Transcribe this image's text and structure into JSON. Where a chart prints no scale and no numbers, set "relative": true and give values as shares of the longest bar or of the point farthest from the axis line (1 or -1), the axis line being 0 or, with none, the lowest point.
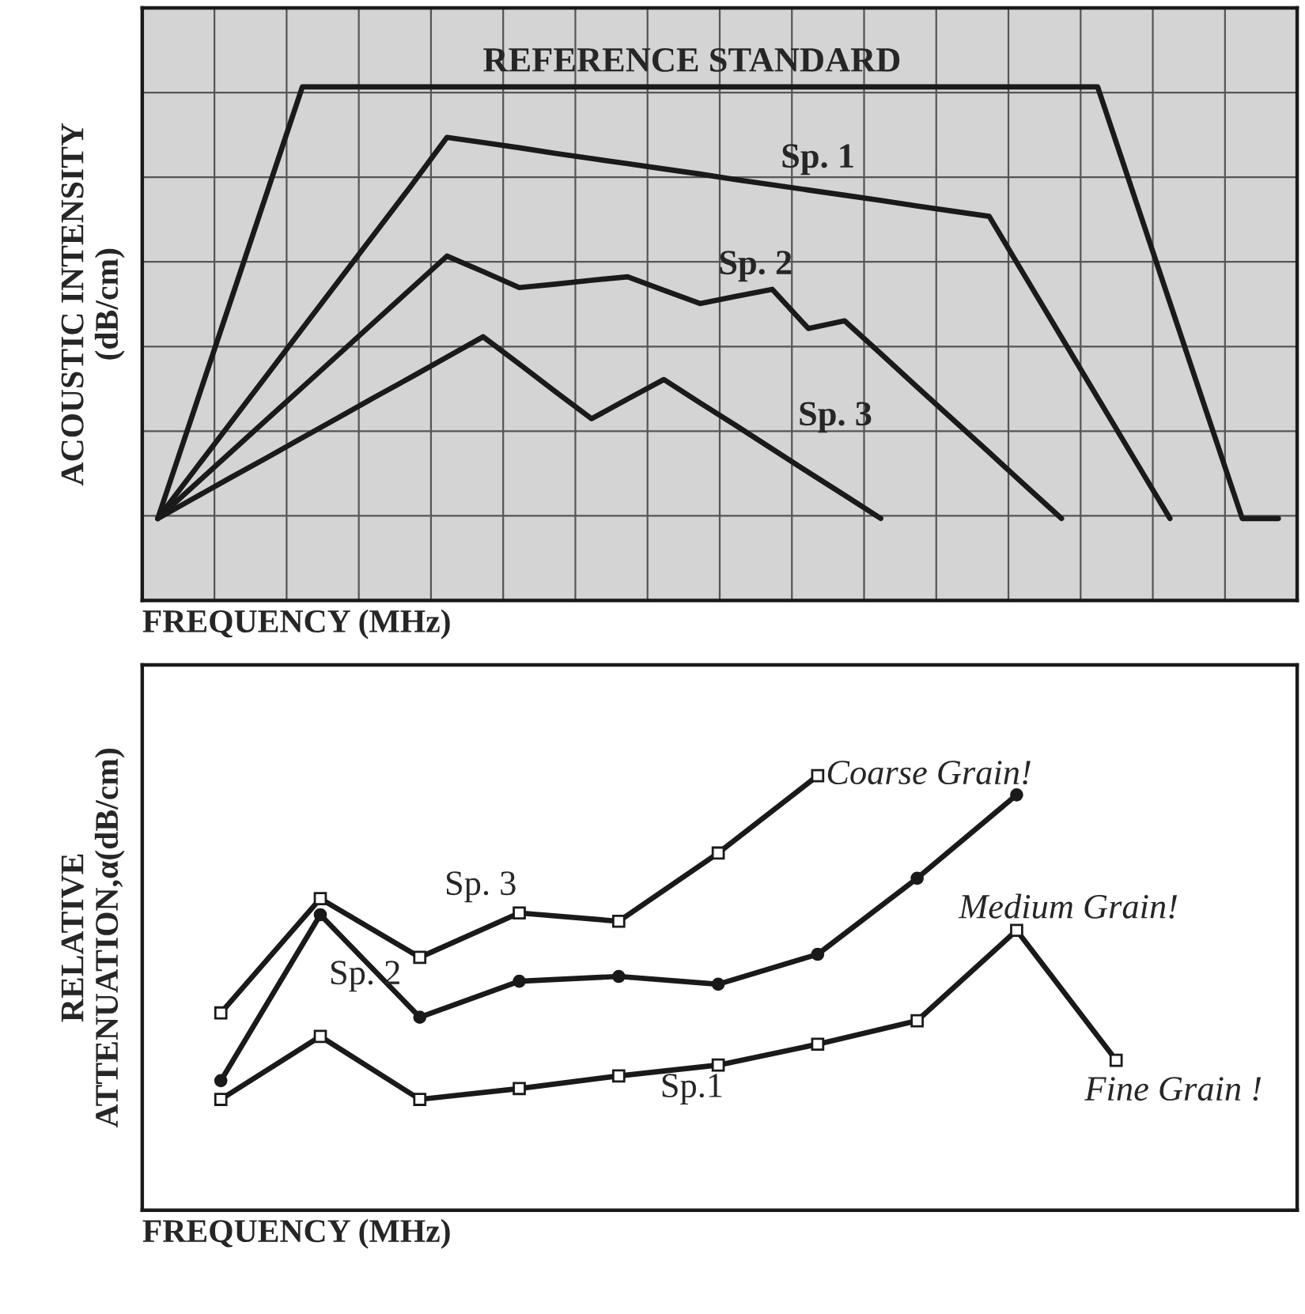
{
  "chart_data": [
    {
      "type": "line",
      "relative": true,
      "xlabel": "FREQUENCY (MHz)",
      "ylabel": "ACOUSTIC INTENSITY\n(dB/cm)",
      "grid": true,
      "tick_labels": false,
      "marker": "none",
      "line_style": "solid",
      "categories": [
        null,
        null,
        null,
        null,
        null,
        null,
        null,
        null,
        null,
        null,
        null,
        null,
        null,
        null,
        null,
        null,
        null,
        null,
        null,
        null,
        null,
        null,
        null,
        null,
        null,
        null,
        null,
        null,
        null,
        null,
        null,
        null
      ],
      "series": [
        {
          "color": "#1a1a1a",
          "values": [
            0,
            0.25,
            0.5,
            0.75,
            1,
            1,
            1,
            1,
            1,
            1,
            1,
            1,
            1,
            1,
            1,
            1,
            1,
            1,
            1,
            1,
            1,
            1,
            1,
            1,
            1,
            1,
            1,
            0.75,
            0.5,
            0.25,
            0,
            0
          ]
        },
        {
          "color": "#1a1a1a",
          "values": [
            0,
            0.11,
            0.22,
            0.33,
            0.44,
            0.55,
            0.66,
            0.77,
            0.883,
            0.871,
            0.859,
            0.846,
            0.834,
            0.822,
            0.81,
            0.798,
            0.785,
            0.773,
            0.761,
            0.749,
            0.737,
            0.724,
            0.712,
            0.7,
            0.56,
            0.42,
            0.28,
            0.14,
            0,
            null,
            null,
            null
          ]
        },
        {
          "color": "#1a1a1a",
          "values": [
            0,
            0.076,
            0.152,
            0.228,
            0.304,
            0.38,
            0.456,
            0.532,
            0.608,
            0.572,
            0.535,
            0.543,
            0.552,
            0.56,
            0.529,
            0.498,
            0.515,
            0.531,
            0.44,
            0.458,
            0.382,
            0.305,
            0.229,
            0.153,
            0.076,
            0,
            null,
            null,
            null,
            null,
            null,
            null
          ]
        },
        {
          "color": "#1a1a1a",
          "values": [
            0,
            0.047,
            0.094,
            0.14,
            0.187,
            0.234,
            0.281,
            0.327,
            0.374,
            0.421,
            0.358,
            0.294,
            0.231,
            0.277,
            0.322,
            0.268,
            0.215,
            0.161,
            0.107,
            0.054,
            0,
            null,
            null,
            null,
            null,
            null,
            null,
            null,
            null,
            null,
            null,
            null
          ]
        }
      ],
      "annotations": [
        "REFERENCE STANDARD",
        "Sp. 1",
        "Sp. 2",
        "Sp. 3"
      ]
    },
    {
      "type": "line",
      "relative": true,
      "xlabel": "FREQUENCY (MHz)",
      "ylabel": "RELATIVE\nATTENUATION,α(dB/cm)",
      "grid": false,
      "tick_labels": false,
      "marker": "square",
      "line_style": "solid",
      "categories": [
        null,
        null,
        null,
        null,
        null,
        null,
        null,
        null,
        null,
        null
      ],
      "series": [
        {
          "color": "#1a1a1a",
          "values": [
            0.454,
            0.717,
            0.582,
            0.684,
            0.665,
            0.822,
            1.0,
            null,
            null,
            null
          ]
        },
        {
          "color": "#1a1a1a",
          "marker": "circle",
          "values": [
            0.298,
            0.68,
            0.444,
            0.527,
            0.538,
            0.52,
            0.589,
            0.764,
            0.956,
            null
          ]
        },
        {
          "color": "#1a1a1a",
          "values": [
            0.255,
            0.4,
            0.255,
            0.28,
            0.309,
            0.334,
            0.382,
            0.436,
            0.644,
            0.345
          ]
        }
      ],
      "annotations": [
        "Coarse Grain!",
        "Medium Grain!",
        "Fine Grain !",
        "Sp. 3",
        "Sp. 2",
        "Sp.1"
      ]
    }
  ]
}
